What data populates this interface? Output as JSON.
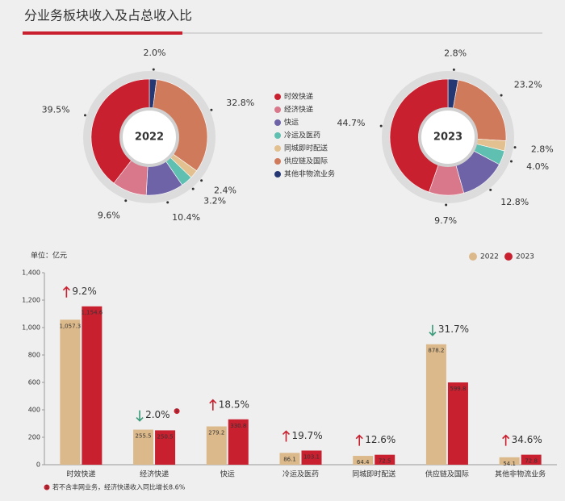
{
  "title": "分业务板块收入及占总收入比",
  "chart_data": [
    {
      "type": "pie",
      "center_label": "2022",
      "categories": [
        "时效快递",
        "经济快递",
        "快运",
        "冷运及医药",
        "同城即时配送",
        "供应链及国际",
        "其他非物流业务"
      ],
      "colors": [
        "#c8202f",
        "#d9788a",
        "#6e63a6",
        "#5fbfb0",
        "#e2c08f",
        "#d07a5c",
        "#263873"
      ],
      "values": [
        39.5,
        9.6,
        10.4,
        3.2,
        2.4,
        32.8,
        2.0
      ],
      "value_labels": [
        "39.5%",
        "9.6%",
        "10.4%",
        "3.2%",
        "2.4%",
        "32.8%",
        "2.0%"
      ]
    },
    {
      "type": "pie",
      "center_label": "2023",
      "values": [
        44.7,
        9.7,
        12.8,
        4.0,
        2.8,
        23.2,
        2.8
      ],
      "value_labels": [
        "44.7%",
        "9.7%",
        "12.8%",
        "4.0%",
        "2.8%",
        "23.2%",
        "2.8%"
      ]
    },
    {
      "type": "bar",
      "unit_label": "单位：亿元",
      "categories": [
        "时效快递",
        "经济快递",
        "快运",
        "冷运及医药",
        "同城即时配送",
        "供应链及国际",
        "其他非物流业务"
      ],
      "series": [
        {
          "name": "2022",
          "color": "#dcb98a",
          "values": [
            1057.3,
            255.5,
            279.2,
            86.1,
            64.4,
            878.2,
            54.1
          ],
          "value_labels": [
            "1,057.3",
            "255.5",
            "279.2",
            "86.1",
            "64.4",
            "878.2",
            "54.1"
          ]
        },
        {
          "name": "2023",
          "color": "#c8202f",
          "values": [
            1154.6,
            250.5,
            330.8,
            103.1,
            72.5,
            599.8,
            72.8
          ],
          "value_labels": [
            "1,154.6",
            "250.5",
            "330.8",
            "103.1",
            "72.5",
            "599.8",
            "72.8"
          ]
        }
      ],
      "change_labels": [
        "9.2%",
        "2.0%",
        "18.5%",
        "19.7%",
        "12.6%",
        "31.7%",
        "34.6%"
      ],
      "change_directions": [
        "up",
        "down",
        "up",
        "up",
        "up",
        "down",
        "up"
      ],
      "footnote_marker": "1",
      "footnote": "若不含丰网业务，经济快递收入同比增长8.6%",
      "ylim": [
        0,
        1400
      ],
      "yticks": [
        0,
        200,
        400,
        600,
        800,
        {
          "value": 1000,
          "label": "1,000"
        },
        {
          "value": 1200,
          "label": "1,200"
        },
        {
          "value": 1400,
          "label": "1,400"
        }
      ],
      "grid": false
    }
  ]
}
